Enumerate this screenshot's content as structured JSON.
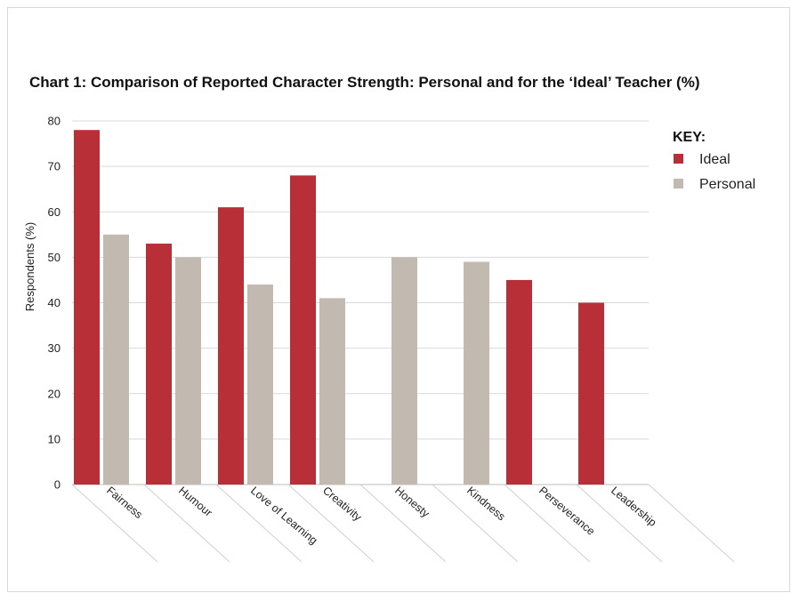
{
  "chart_data": {
    "type": "bar",
    "title": "Chart 1: Comparison of Reported Character Strength: Personal and for the ‘Ideal’ Teacher (%)",
    "xlabel": "",
    "ylabel": "Respondents (%)",
    "ylim": [
      0,
      80
    ],
    "yticks": [
      0,
      10,
      20,
      30,
      40,
      50,
      60,
      70,
      80
    ],
    "grid": true,
    "legend_title": "KEY:",
    "legend_position": "right",
    "categories": [
      "Fairness",
      "Humour",
      "Love of Learning",
      "Creativity",
      "Honesty",
      "Kindness",
      "Perseverance",
      "Leadership"
    ],
    "series": [
      {
        "name": "Ideal",
        "color": "#b92f37",
        "values": [
          78,
          53,
          61,
          68,
          null,
          null,
          45,
          40
        ]
      },
      {
        "name": "Personal",
        "color": "#c2b9b0",
        "values": [
          55,
          50,
          44,
          41,
          50,
          49,
          null,
          null
        ]
      }
    ]
  }
}
